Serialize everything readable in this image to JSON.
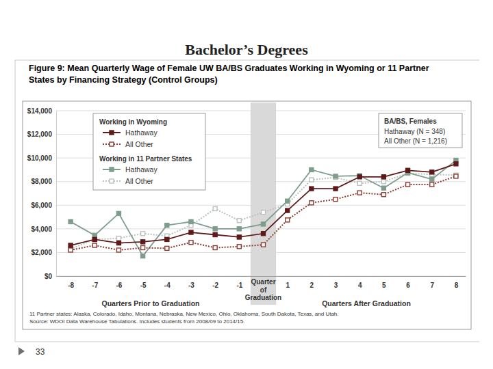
{
  "slide": {
    "title": "Bachelor’s Degrees",
    "page": 33
  },
  "chart_data": {
    "type": "line",
    "title": "Figure 9: Mean Quarterly Wage of Female UW BA/BS Graduates Working in Wyoming or 11 Partner States by Financing Strategy (Control Groups)",
    "x": [
      -8,
      -7,
      -6,
      -5,
      -4,
      -3,
      -2,
      -1,
      0,
      1,
      2,
      3,
      4,
      5,
      6,
      7,
      8
    ],
    "xlim": [
      -8.6,
      8.4
    ],
    "xticks": [
      -8,
      -7,
      -6,
      -5,
      -4,
      -3,
      -2,
      -1,
      1,
      2,
      3,
      4,
      5,
      6,
      7,
      8
    ],
    "ylim": [
      0,
      14000
    ],
    "yticks": [
      {
        "value": 0,
        "label": "$0"
      },
      {
        "value": 2000,
        "label": "$2,000"
      },
      {
        "value": 4000,
        "label": "$4,000"
      },
      {
        "value": 6000,
        "label": "$6,000"
      },
      {
        "value": 8000,
        "label": "$8,000"
      },
      {
        "value": 10000,
        "label": "$10,000"
      },
      {
        "value": 12000,
        "label": "$12,000"
      },
      {
        "value": 14000,
        "label": "$14,000"
      }
    ],
    "grid": true,
    "legend": "upper left",
    "series": [
      {
        "name": "Hathaway",
        "group": "Working in Wyoming",
        "color": "#5e1a1a",
        "marker": "square",
        "line_style": "solid",
        "values": [
          2600,
          3100,
          2800,
          2900,
          3100,
          3700,
          3500,
          3300,
          3600,
          5550,
          7400,
          7400,
          8400,
          8400,
          8950,
          8800,
          9500
        ]
      },
      {
        "name": "All Other",
        "group": "Working in Wyoming",
        "color": "#8a3a30",
        "marker": "square-open",
        "line_style": "dotted",
        "values": [
          2200,
          2600,
          2200,
          2400,
          2350,
          2850,
          2400,
          2500,
          2650,
          4750,
          6200,
          6500,
          7050,
          6900,
          7750,
          7750,
          8450
        ]
      },
      {
        "name": "Hathaway",
        "group": "Working in 11 Partner States",
        "color": "#7f9c8c",
        "marker": "square",
        "line_style": "solid",
        "values": [
          4600,
          3450,
          5300,
          1700,
          4300,
          4600,
          4000,
          4000,
          4400,
          6350,
          9000,
          8450,
          8500,
          7450,
          8750,
          8200,
          9800
        ]
      },
      {
        "name": "All Other",
        "group": "Working in 11 Partner States",
        "color": "#b9c2bd",
        "marker": "square-open",
        "line_style": "dotted",
        "values": [
          2300,
          3100,
          3200,
          3600,
          3400,
          4300,
          5700,
          4700,
          5400,
          6100,
          8150,
          8350,
          7850,
          8000,
          8700,
          8600,
          8550
        ]
      }
    ],
    "shaded_x": 0,
    "shaded_label": [
      "Quarter",
      "of",
      "Graduation"
    ],
    "xlabel_left": "Quarters Prior to Graduation",
    "xlabel_right": "Quarters After Graduation",
    "note_box": {
      "title": "BA/BS, Females",
      "lines": [
        "Hathaway (N = 348)",
        "All Other (N = 1,216)"
      ]
    },
    "footnotes": [
      "11 Partner states: Alaska, Colorado, Idaho, Montana, Nebraska, New Mexico, Ohio, Oklahoma, South Dakota, Texas, and Utah.",
      "Source: WDOI Data Warehouse Tabulations. Includes students from 2008/09 to 2014/15."
    ]
  }
}
